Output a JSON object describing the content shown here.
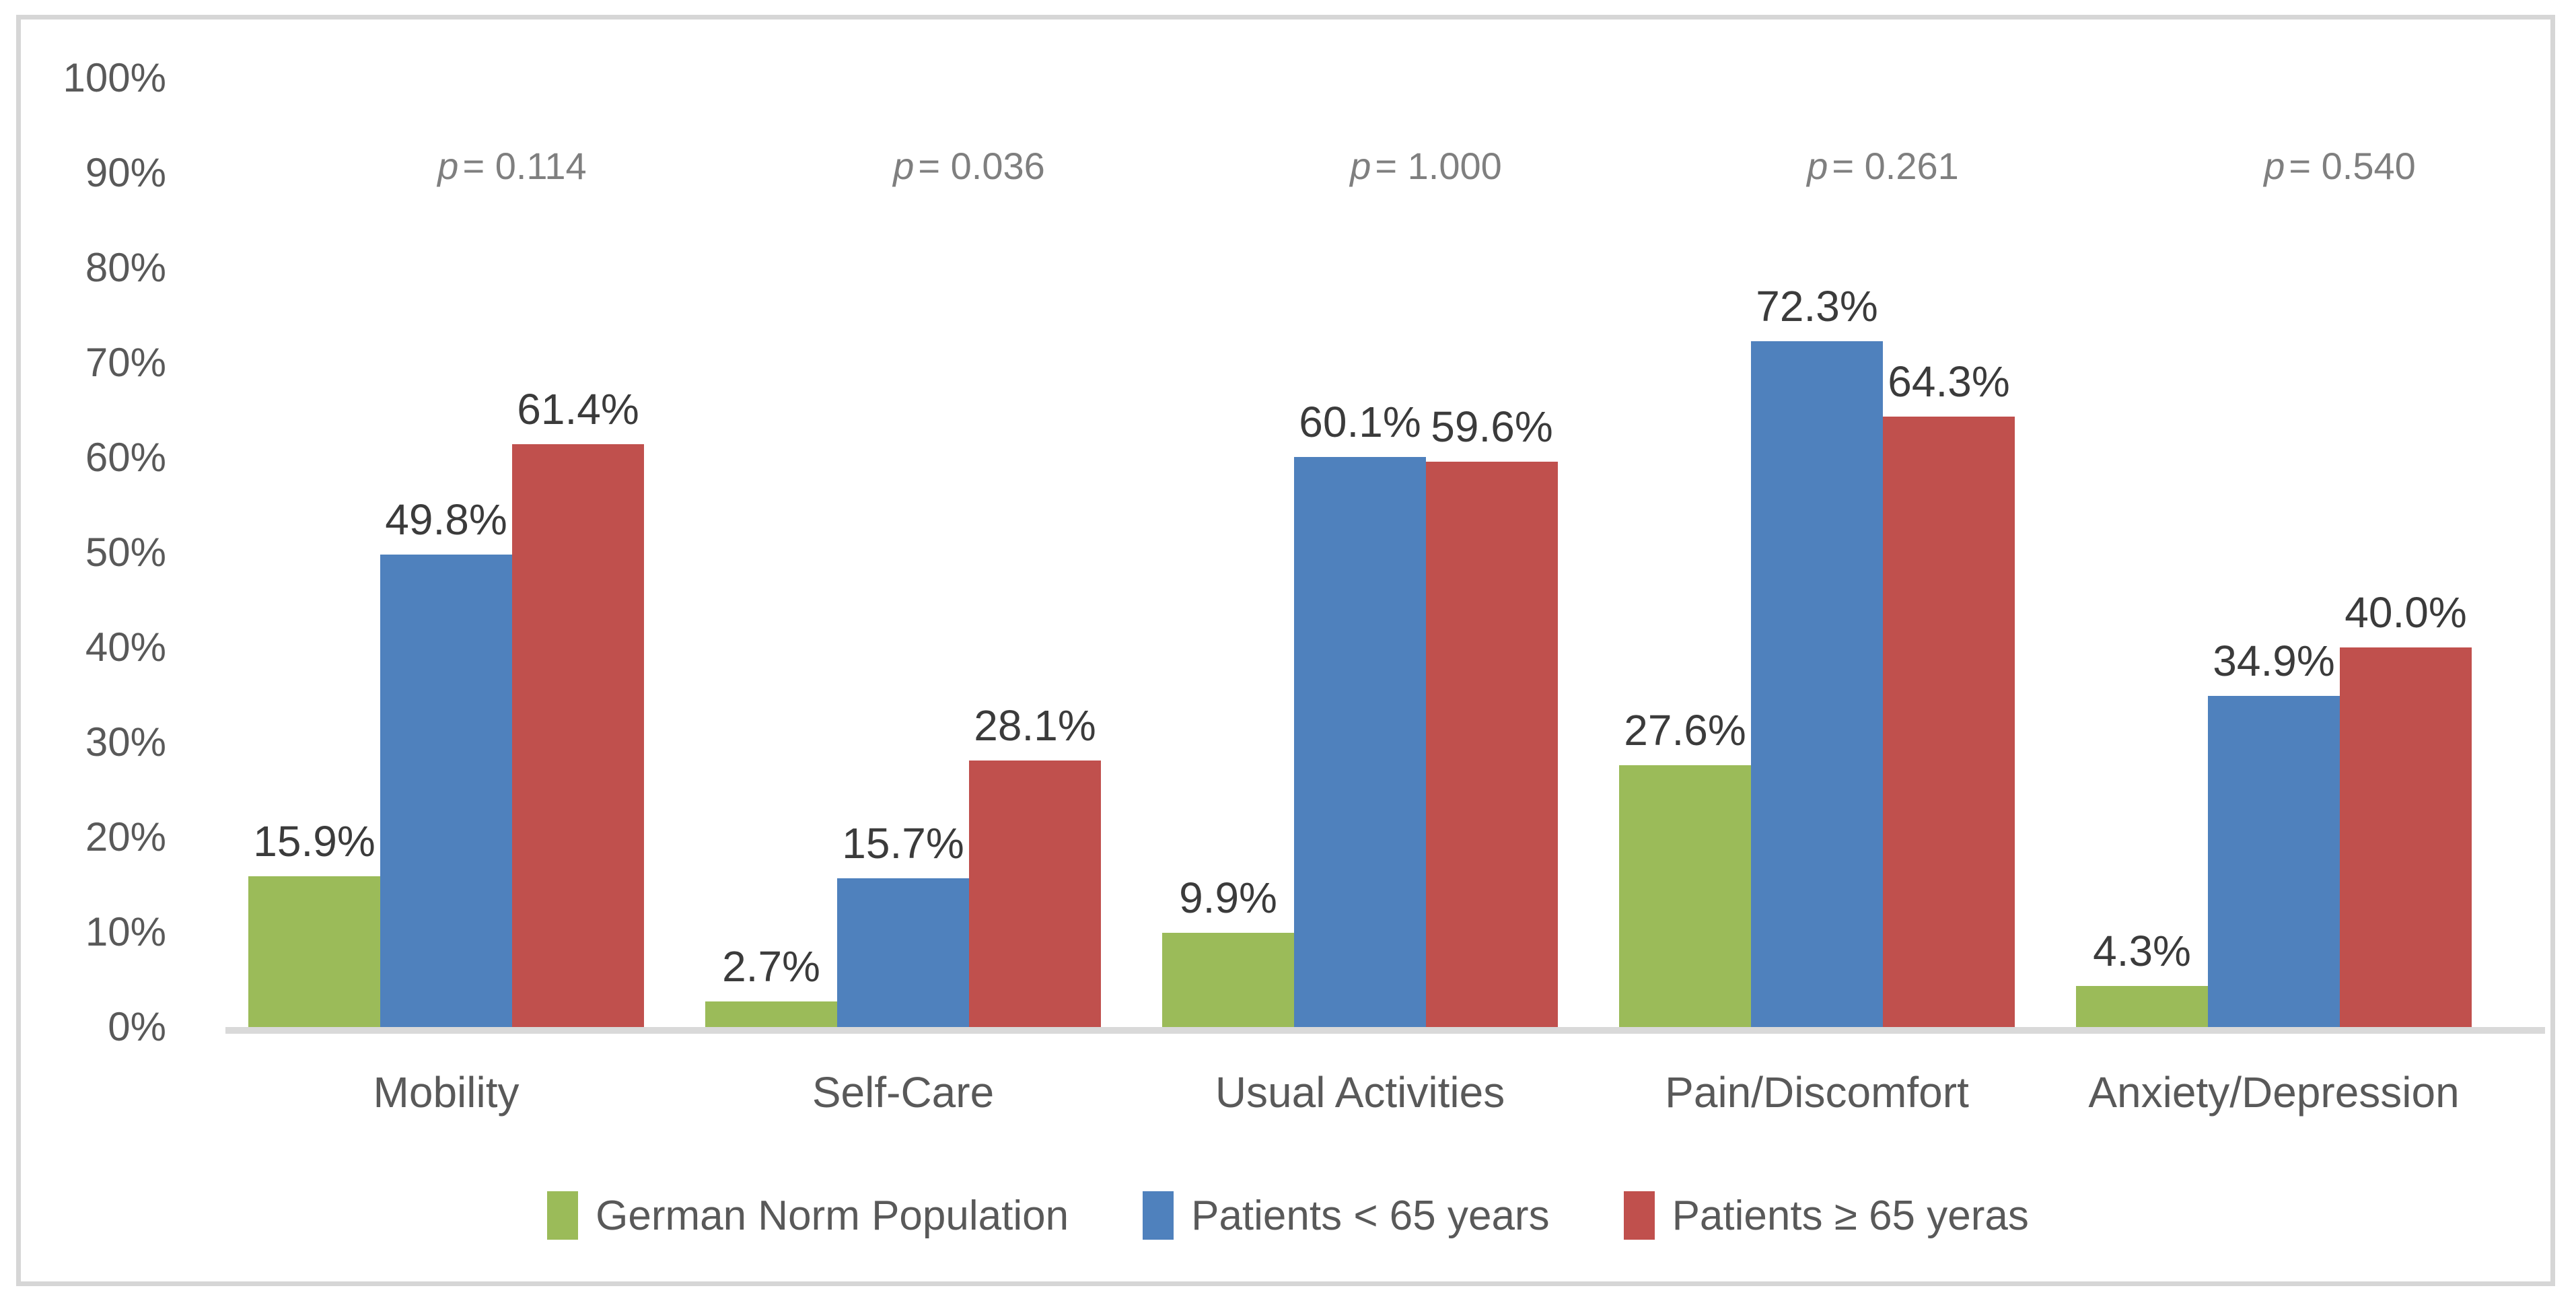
{
  "chart_data": {
    "type": "bar",
    "title": "",
    "categories": [
      "Mobility",
      "Self-Care",
      "Usual Activities",
      "Pain/Discomfort",
      "Anxiety/Depression"
    ],
    "series": [
      {
        "name": "German Norm Population",
        "color": "#9BBB59",
        "values": [
          15.9,
          2.7,
          9.9,
          27.6,
          4.3
        ]
      },
      {
        "name": "Patients < 65 years",
        "color": "#4F81BD",
        "values": [
          49.8,
          15.7,
          60.1,
          72.3,
          34.9
        ]
      },
      {
        "name": "Patients ≥ 65 yeras",
        "color": "#C0504D",
        "values": [
          61.4,
          28.1,
          59.6,
          64.3,
          40.0
        ]
      }
    ],
    "value_labels": [
      [
        "15.9%",
        "2.7%",
        "9.9%",
        "27.6%",
        "4.3%"
      ],
      [
        "49.8%",
        "15.7%",
        "60.1%",
        "72.3%",
        "34.9%"
      ],
      [
        "61.4%",
        "28.1%",
        "59.6%",
        "64.3%",
        "40.0%"
      ]
    ],
    "p_labels": [
      "p = 0.114",
      "p = 0.036",
      "p = 1.000",
      "p = 0.261",
      "p = 0.540"
    ],
    "y_axis": {
      "min": 0,
      "max": 100,
      "tick_step": 10,
      "ticks": [
        "100%",
        "90%",
        "80%",
        "70%",
        "60%",
        "50%",
        "40%",
        "30%",
        "20%",
        "10%",
        "0%"
      ]
    },
    "grid": false,
    "legend_position": "bottom"
  },
  "colors": {
    "background": "#FFFFFF",
    "frame_border": "#D6D6D6",
    "baseline": "#D9D9D9",
    "axis_text": "#595959",
    "category_text": "#595959",
    "legend_text": "#595959",
    "value_label_text": "#3B3B3B",
    "p_label_text": "#7F7F7F",
    "series_green": "#9BBB59",
    "series_blue": "#4F81BD",
    "series_red": "#C0504D"
  }
}
